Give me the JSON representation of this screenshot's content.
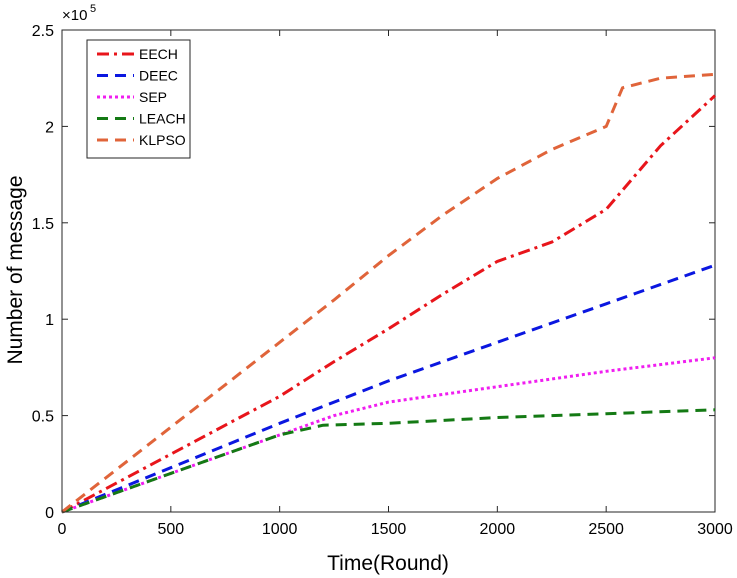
{
  "chart_data": {
    "type": "line",
    "title": "",
    "xlabel": "Time(Round)",
    "ylabel": "Number of message",
    "y_multiplier_label": "×10",
    "y_multiplier_exponent": "5",
    "xlim": [
      0,
      3000
    ],
    "ylim": [
      0,
      2.5
    ],
    "x_ticks": [
      0,
      500,
      1000,
      1500,
      2000,
      2500,
      3000
    ],
    "y_ticks": [
      0,
      0.5,
      1,
      1.5,
      2,
      2.5
    ],
    "x_tick_labels": [
      "0",
      "500",
      "1000",
      "1500",
      "2000",
      "2500",
      "3000"
    ],
    "y_tick_labels": [
      "0",
      "0.5",
      "1",
      "1.5",
      "2",
      "2.5"
    ],
    "grid": false,
    "legend_position": "top-left",
    "series": [
      {
        "name": "EECH",
        "color": "#e8151b",
        "dash": "dash-dot",
        "x": [
          0,
          250,
          500,
          750,
          1000,
          1250,
          1500,
          1750,
          2000,
          2250,
          2500,
          2750,
          3000
        ],
        "y": [
          0,
          0.15,
          0.3,
          0.45,
          0.6,
          0.78,
          0.95,
          1.13,
          1.3,
          1.4,
          1.57,
          1.9,
          2.16
        ]
      },
      {
        "name": "DEEC",
        "color": "#0b17e0",
        "dash": "dash",
        "x": [
          0,
          500,
          1000,
          1500,
          2000,
          2500,
          3000
        ],
        "y": [
          0,
          0.23,
          0.46,
          0.68,
          0.88,
          1.08,
          1.28
        ]
      },
      {
        "name": "SEP",
        "color": "#f01ef0",
        "dash": "dot",
        "x": [
          0,
          500,
          1000,
          1250,
          1500,
          2000,
          2500,
          3000
        ],
        "y": [
          0,
          0.2,
          0.4,
          0.5,
          0.57,
          0.65,
          0.73,
          0.8
        ]
      },
      {
        "name": "LEACH",
        "color": "#147a14",
        "dash": "dash",
        "x": [
          0,
          500,
          1000,
          1200,
          1500,
          2000,
          2500,
          3000
        ],
        "y": [
          0,
          0.2,
          0.4,
          0.45,
          0.46,
          0.49,
          0.51,
          0.53
        ]
      },
      {
        "name": "KLPSO",
        "color": "#e0643a",
        "dash": "dash",
        "x": [
          0,
          250,
          500,
          750,
          1000,
          1250,
          1500,
          1750,
          2000,
          2250,
          2500,
          2575,
          2750,
          3000
        ],
        "y": [
          0,
          0.22,
          0.44,
          0.66,
          0.88,
          1.1,
          1.33,
          1.54,
          1.73,
          1.88,
          2.0,
          2.2,
          2.25,
          2.27
        ]
      }
    ]
  }
}
